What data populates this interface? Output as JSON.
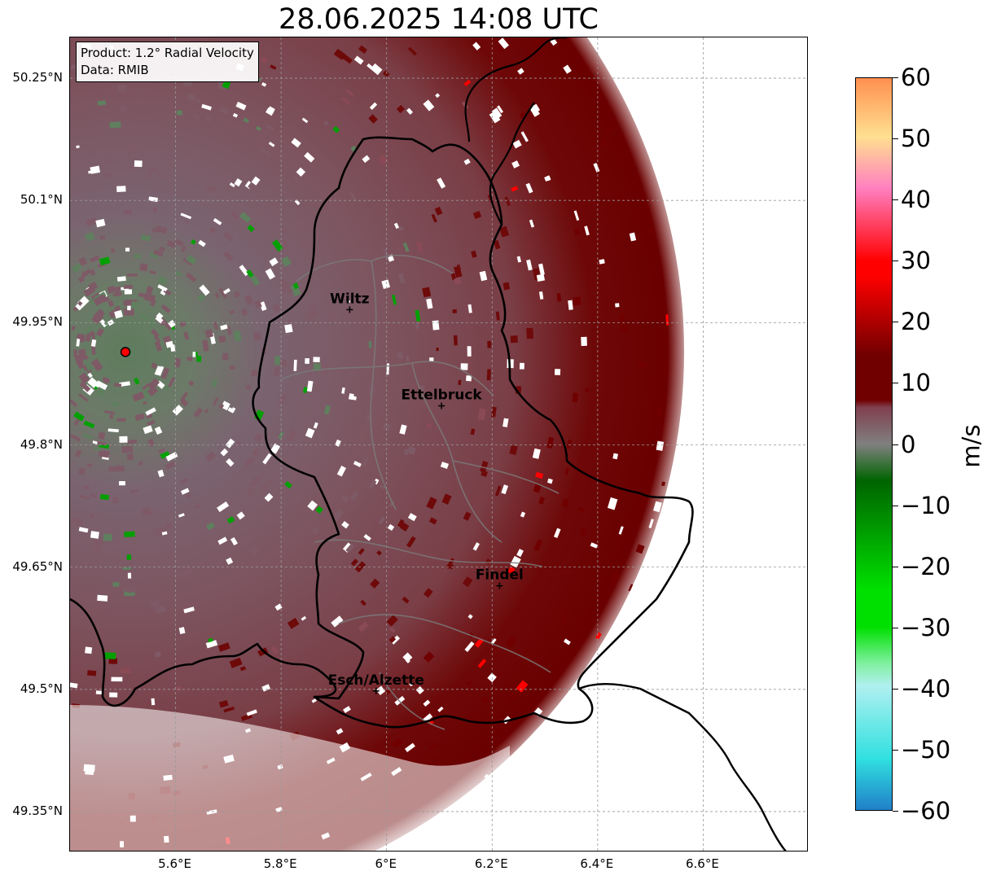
{
  "title": "28.06.2025 14:08 UTC",
  "info": {
    "product": "Product: 1.2° Radial Velocity",
    "data_source": "Data: RMIB"
  },
  "map": {
    "lon_range": [
      5.4,
      6.8
    ],
    "lat_range": [
      49.3,
      50.3
    ],
    "lat_ticks": [
      {
        "value": 50.25,
        "label": "50.25°N"
      },
      {
        "value": 50.1,
        "label": "50.1°N"
      },
      {
        "value": 49.95,
        "label": "49.95°N"
      },
      {
        "value": 49.8,
        "label": "49.8°N"
      },
      {
        "value": 49.65,
        "label": "49.65°N"
      },
      {
        "value": 49.5,
        "label": "49.5°N"
      },
      {
        "value": 49.35,
        "label": "49.35°N"
      }
    ],
    "lon_ticks": [
      {
        "value": 5.6,
        "label": "5.6°E"
      },
      {
        "value": 5.8,
        "label": "5.8°E"
      },
      {
        "value": 6.0,
        "label": "6°E"
      },
      {
        "value": 6.2,
        "label": "6.2°E"
      },
      {
        "value": 6.4,
        "label": "6.4°E"
      },
      {
        "value": 6.6,
        "label": "6.6°E"
      }
    ],
    "radar_site": {
      "lon": 5.505,
      "lat": 49.914
    },
    "cities": [
      {
        "name": "Wiltz",
        "lon": 5.93,
        "lat": 49.966
      },
      {
        "name": "Ettelbruck",
        "lon": 6.104,
        "lat": 49.848
      },
      {
        "name": "Findel",
        "lon": 6.214,
        "lat": 49.627
      },
      {
        "name": "Esch/Alzette",
        "lon": 5.98,
        "lat": 49.498
      }
    ]
  },
  "colorbar": {
    "label": "m/s",
    "ticks": [
      "60",
      "50",
      "40",
      "30",
      "20",
      "10",
      "0",
      "−10",
      "−20",
      "−30",
      "−40",
      "−50",
      "−60"
    ],
    "colors": {
      "neg_blue": "#2080c8",
      "neg_cyan": "#30e0e0",
      "neg_lightcyan": "#b0f0f0",
      "neg_lightgreen": "#80f0a0",
      "neg_green": "#00e000",
      "neg_darkgreen": "#006400",
      "zero_gray": "#808080",
      "pos_mauve": "#804050",
      "pos_darkred": "#700000",
      "pos_red": "#ff0000",
      "pos_pink": "#ff80c0",
      "pos_peach": "#ffe090",
      "pos_orange": "#ff9050"
    }
  }
}
